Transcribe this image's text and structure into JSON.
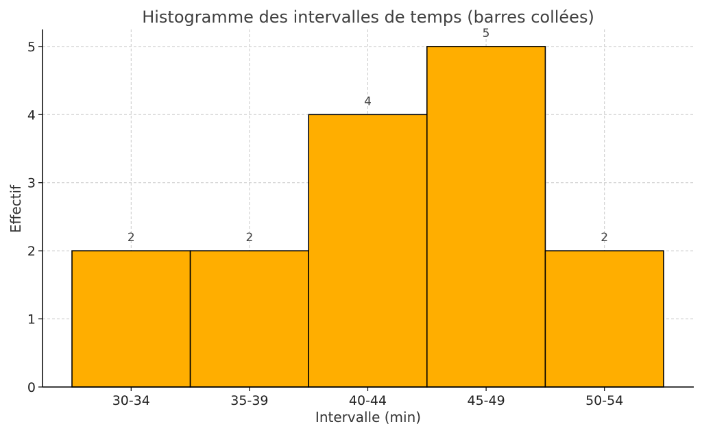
{
  "chart_data": {
    "type": "bar",
    "title": "Histogramme des intervalles de temps (barres collées)",
    "xlabel": "Intervalle (min)",
    "ylabel": "Effectif",
    "categories": [
      "30-34",
      "35-39",
      "40-44",
      "45-49",
      "50-54"
    ],
    "values": [
      2,
      2,
      4,
      5,
      2
    ],
    "data_labels": [
      "2",
      "2",
      "4",
      "5",
      "2"
    ],
    "y_ticks": [
      0,
      1,
      2,
      3,
      4,
      5
    ],
    "ylim": [
      0,
      5.25
    ],
    "grid": true,
    "bar_color": "#FFAE00",
    "bar_edge_color": "#000000",
    "bar_gap": "none"
  }
}
